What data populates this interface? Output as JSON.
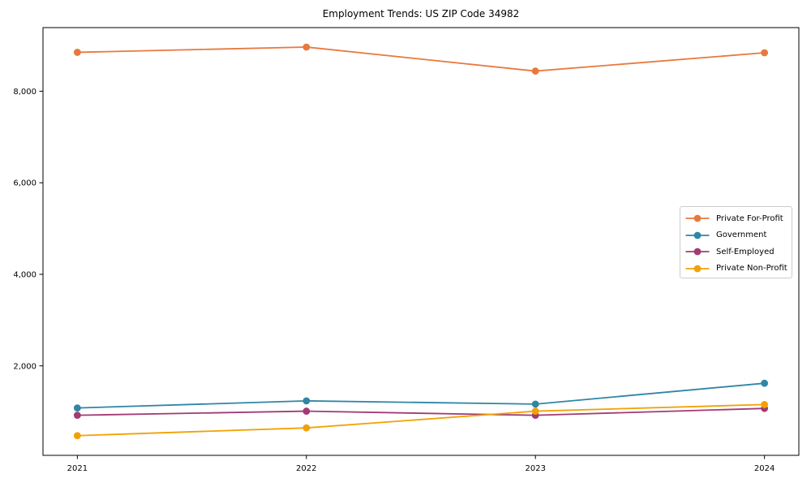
{
  "title": "Employment Trends: US ZIP Code 34982",
  "chart_data": {
    "type": "line",
    "title": "Employment Trends: US ZIP Code 34982",
    "xlabel": "",
    "ylabel": "",
    "x": [
      2021,
      2022,
      2023,
      2024
    ],
    "x_tick_labels": [
      "2021",
      "2022",
      "2023",
      "2024"
    ],
    "y_ticks": [
      2000,
      4000,
      6000,
      8000
    ],
    "y_tick_labels": [
      "2,000",
      "4,000",
      "6,000",
      "8,000"
    ],
    "xlim": [
      2020.85,
      2024.15
    ],
    "ylim": [
      45,
      9390
    ],
    "grid": false,
    "legend_position": "center right",
    "marker": "circle",
    "background_color": "#ffffff",
    "frame_color": "#000000",
    "series": [
      {
        "name": "Private For-Profit",
        "color": "#E8793D",
        "values": [
          8850,
          8965,
          8440,
          8840
        ]
      },
      {
        "name": "Government",
        "color": "#2F86A5",
        "values": [
          1080,
          1235,
          1165,
          1620
        ]
      },
      {
        "name": "Self-Employed",
        "color": "#A23B72",
        "values": [
          920,
          1010,
          920,
          1070
        ]
      },
      {
        "name": "Private Non-Profit",
        "color": "#F2A104",
        "values": [
          475,
          645,
          1010,
          1155
        ]
      }
    ]
  }
}
